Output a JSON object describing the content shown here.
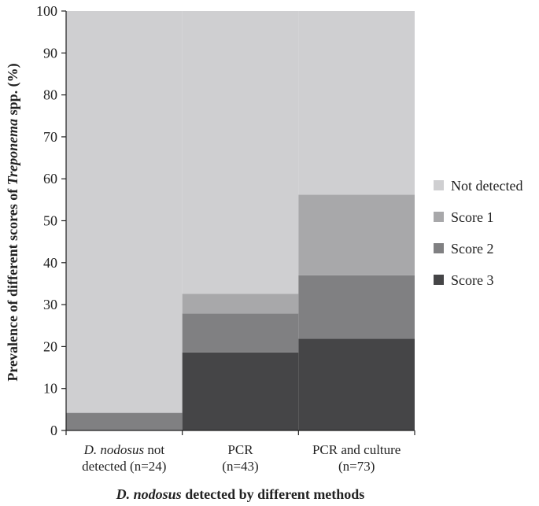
{
  "chart_data": {
    "type": "bar",
    "stacked": true,
    "categories": [
      [
        "D. nodosus not",
        "detected (n=24)"
      ],
      [
        "PCR",
        "(n=43)"
      ],
      [
        "PCR and culture",
        "(n=73)"
      ]
    ],
    "series": [
      {
        "name": "Score 3",
        "values": [
          0,
          18.6,
          21.9
        ],
        "color": "#454547"
      },
      {
        "name": "Score 2",
        "values": [
          4.2,
          9.3,
          15.1
        ],
        "color": "#808082"
      },
      {
        "name": "Score 1",
        "values": [
          0,
          4.7,
          19.2
        ],
        "color": "#a8a8aa"
      },
      {
        "name": "Not detected",
        "values": [
          95.8,
          67.4,
          43.8
        ],
        "color": "#cfcfd1"
      }
    ],
    "legend_order": [
      "Not detected",
      "Score 1",
      "Score 2",
      "Score 3"
    ],
    "legend_position": "right",
    "ylim": [
      0,
      100
    ],
    "yticks": [
      0,
      10,
      20,
      30,
      40,
      50,
      60,
      70,
      80,
      90,
      100
    ],
    "ylabel": {
      "parts": [
        {
          "text": "Prevalence of different scores of ",
          "italic": false
        },
        {
          "text": "Treponema",
          "italic": true
        },
        {
          "text": " spp. (%)",
          "italic": false
        }
      ]
    },
    "xlabel": {
      "parts": [
        {
          "text": "D. nodosus",
          "italic": true
        },
        {
          "text": " detected by different methods",
          "italic": false
        }
      ]
    },
    "grid": false
  }
}
